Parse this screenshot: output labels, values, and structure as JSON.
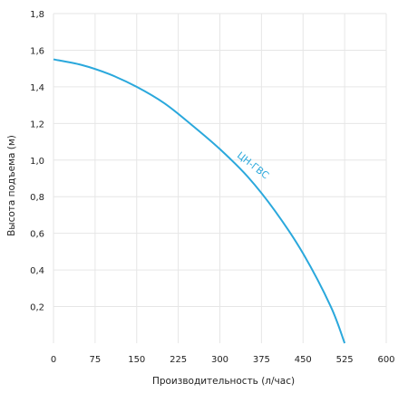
{
  "chart_data": {
    "type": "line",
    "xlabel": "Производительность (л/час)",
    "ylabel": "Высота подъема (м)",
    "xlim": [
      0,
      600
    ],
    "ylim": [
      0,
      1.8
    ],
    "x_ticks": [
      "0",
      "75",
      "150",
      "225",
      "300",
      "375",
      "450",
      "525",
      "600"
    ],
    "y_ticks": [
      "0,2",
      "0,4",
      "0,6",
      "0,8",
      "1,0",
      "1,2",
      "1,4",
      "1,6",
      "1,8"
    ],
    "grid": true,
    "series": [
      {
        "name": "ЦН-ГВС",
        "color": "#2aa8dc",
        "x": [
          0,
          50,
          100,
          150,
          200,
          250,
          300,
          350,
          400,
          450,
          500,
          525
        ],
        "y": [
          1.55,
          1.52,
          1.47,
          1.4,
          1.31,
          1.19,
          1.06,
          0.91,
          0.72,
          0.49,
          0.2,
          0.0
        ]
      }
    ]
  }
}
